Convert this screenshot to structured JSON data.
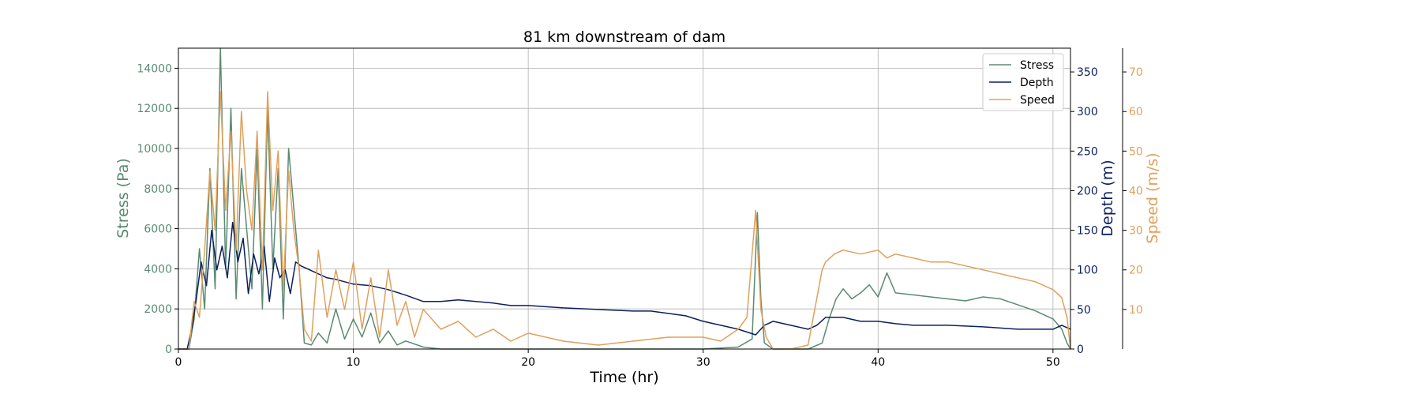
{
  "chart_data": {
    "type": "line",
    "title": "81 km downstream of dam",
    "xlabel": "Time (hr)",
    "xlim": [
      0,
      51
    ],
    "x_ticks": [
      0,
      10,
      20,
      30,
      40,
      50
    ],
    "grid": true,
    "legend_position": "top-right",
    "axes": [
      {
        "id": "stress",
        "label": "Stress (Pa)",
        "side": "left",
        "color": "#5a8a72",
        "ylim": [
          0,
          15000
        ],
        "ticks": [
          0,
          2000,
          4000,
          6000,
          8000,
          10000,
          12000,
          14000
        ]
      },
      {
        "id": "depth",
        "label": "Depth (m)",
        "side": "right",
        "color": "#0c1f5e",
        "ylim": [
          0,
          380
        ],
        "ticks": [
          0,
          50,
          100,
          150,
          200,
          250,
          300,
          350
        ]
      },
      {
        "id": "speed",
        "label": "Speed (m/s)",
        "side": "right-outer",
        "color": "#e0a05a",
        "ylim": [
          0,
          76
        ],
        "ticks": [
          10,
          20,
          30,
          40,
          50,
          60,
          70
        ]
      }
    ],
    "series": [
      {
        "name": "Stress",
        "axis": "stress",
        "color": "#5a8a72",
        "x": [
          0,
          0.6,
          0.9,
          1.2,
          1.5,
          1.8,
          2.1,
          2.4,
          2.7,
          3.0,
          3.3,
          3.6,
          3.9,
          4.2,
          4.5,
          4.8,
          5.1,
          5.4,
          5.7,
          6.0,
          6.3,
          6.6,
          6.9,
          7.2,
          7.6,
          8.0,
          8.5,
          9.0,
          9.5,
          10.0,
          10.5,
          11.0,
          11.5,
          12.0,
          12.5,
          13.0,
          14.0,
          15.0,
          17.0,
          20.0,
          25.0,
          30.0,
          32.0,
          32.8,
          33.1,
          33.3,
          33.5,
          34.0,
          36.0,
          36.8,
          37.2,
          37.6,
          38.0,
          38.5,
          39.0,
          39.5,
          40.0,
          40.5,
          41.0,
          42.0,
          43.0,
          44.0,
          45.0,
          46.0,
          47.0,
          48.0,
          49.0,
          50.0,
          50.5,
          50.8,
          51.0
        ],
        "values": [
          0,
          0,
          1500,
          5000,
          2000,
          9000,
          3000,
          15000,
          4000,
          12000,
          2500,
          9000,
          6000,
          3000,
          10000,
          2000,
          12000,
          4000,
          9000,
          1500,
          10000,
          7000,
          4000,
          300,
          200,
          800,
          300,
          2000,
          500,
          1500,
          600,
          1800,
          300,
          900,
          200,
          400,
          100,
          0,
          0,
          0,
          0,
          0,
          100,
          500,
          6800,
          2500,
          300,
          0,
          0,
          300,
          1500,
          2500,
          3000,
          2500,
          2800,
          3200,
          2600,
          3800,
          2800,
          2700,
          2600,
          2500,
          2400,
          2600,
          2500,
          2200,
          1900,
          1500,
          1000,
          300,
          0
        ]
      },
      {
        "name": "Depth",
        "axis": "depth",
        "color": "#0c1f5e",
        "x": [
          0,
          0.5,
          0.8,
          1.0,
          1.3,
          1.6,
          1.9,
          2.2,
          2.5,
          2.8,
          3.1,
          3.4,
          3.7,
          4.0,
          4.3,
          4.6,
          4.9,
          5.2,
          5.5,
          5.8,
          6.1,
          6.4,
          6.7,
          7.0,
          7.5,
          8.0,
          8.5,
          9.0,
          9.5,
          10.0,
          11.0,
          12.0,
          13.0,
          14.0,
          15.0,
          16.0,
          17.0,
          18.0,
          19.0,
          20.0,
          22.0,
          24.0,
          26.0,
          27.0,
          28.0,
          29.0,
          30.0,
          31.0,
          32.0,
          33.0,
          33.5,
          34.0,
          35.0,
          36.0,
          36.5,
          37.0,
          38.0,
          39.0,
          40.0,
          41.0,
          42.0,
          44.0,
          46.0,
          48.0,
          50.0,
          50.5,
          51.0
        ],
        "values": [
          0,
          0,
          30,
          60,
          110,
          80,
          150,
          100,
          130,
          90,
          160,
          110,
          140,
          70,
          120,
          95,
          130,
          60,
          115,
          90,
          100,
          70,
          110,
          105,
          100,
          95,
          90,
          88,
          85,
          82,
          80,
          75,
          68,
          60,
          60,
          62,
          60,
          58,
          55,
          55,
          52,
          50,
          48,
          48,
          45,
          42,
          35,
          30,
          25,
          18,
          30,
          35,
          30,
          25,
          30,
          40,
          40,
          35,
          35,
          32,
          30,
          30,
          28,
          25,
          25,
          30,
          25
        ]
      },
      {
        "name": "Speed",
        "axis": "speed",
        "color": "#e0a05a",
        "x": [
          0,
          0.6,
          0.9,
          1.2,
          1.5,
          1.8,
          2.1,
          2.4,
          2.7,
          3.0,
          3.3,
          3.6,
          3.9,
          4.2,
          4.5,
          4.8,
          5.1,
          5.4,
          5.7,
          6.0,
          6.3,
          6.6,
          6.9,
          7.2,
          7.6,
          8.0,
          8.5,
          9.0,
          9.5,
          10.0,
          10.5,
          11.0,
          11.5,
          12.0,
          12.5,
          13.0,
          13.5,
          14.0,
          15.0,
          16.0,
          17.0,
          18.0,
          19.0,
          20.0,
          22.0,
          24.0,
          26.0,
          28.0,
          30.0,
          31.0,
          32.0,
          32.5,
          33.0,
          33.3,
          33.6,
          34.0,
          35.0,
          36.0,
          36.8,
          37.0,
          37.5,
          38.0,
          39.0,
          40.0,
          40.5,
          41.0,
          42.0,
          43.0,
          44.0,
          45.0,
          46.0,
          47.0,
          48.0,
          49.0,
          50.0,
          50.5,
          50.8,
          51.0
        ],
        "values": [
          0,
          0,
          12,
          8,
          25,
          45,
          30,
          65,
          35,
          55,
          25,
          60,
          40,
          30,
          55,
          20,
          65,
          35,
          50,
          15,
          45,
          30,
          20,
          5,
          2,
          25,
          8,
          20,
          10,
          22,
          5,
          18,
          3,
          20,
          6,
          12,
          3,
          10,
          5,
          7,
          3,
          5,
          2,
          4,
          2,
          1,
          2,
          3,
          3,
          2,
          5,
          8,
          35,
          10,
          3,
          0,
          0,
          1,
          20,
          22,
          24,
          25,
          24,
          25,
          23,
          24,
          23,
          22,
          22,
          21,
          20,
          19,
          18,
          17,
          15,
          13,
          8,
          0
        ]
      }
    ]
  }
}
